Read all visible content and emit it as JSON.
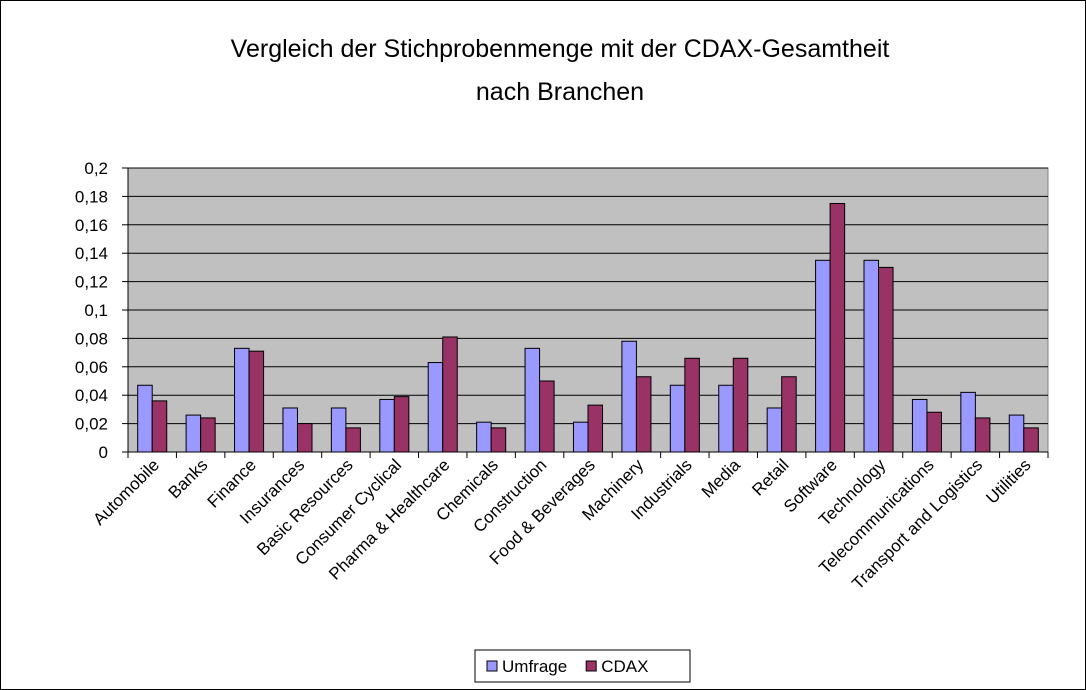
{
  "chart_data": {
    "type": "bar",
    "title_lines": [
      "Vergleich der Stichprobenmenge mit der CDAX-Gesamtheit",
      "nach Branchen"
    ],
    "categories": [
      "Automobile",
      "Banks",
      "Finance",
      "Insurances",
      "Basic Resources",
      "Consumer Cyclical",
      "Pharma & Healthcare",
      "Chemicals",
      "Construction",
      "Food & Beverages",
      "Machinery",
      "Industrials",
      "Media",
      "Retail",
      "Software",
      "Technology",
      "Telecommunications",
      "Transport and Logistics",
      "Utilities"
    ],
    "series": [
      {
        "name": "Umfrage",
        "color": "#9999ff",
        "values": [
          0.047,
          0.026,
          0.073,
          0.031,
          0.031,
          0.037,
          0.063,
          0.021,
          0.073,
          0.021,
          0.078,
          0.047,
          0.047,
          0.031,
          0.135,
          0.135,
          0.037,
          0.042,
          0.026
        ]
      },
      {
        "name": "CDAX",
        "color": "#993366",
        "values": [
          0.036,
          0.024,
          0.071,
          0.02,
          0.017,
          0.039,
          0.081,
          0.017,
          0.05,
          0.033,
          0.053,
          0.066,
          0.066,
          0.053,
          0.175,
          0.13,
          0.028,
          0.024,
          0.017
        ]
      }
    ],
    "ylim": [
      0,
      0.2
    ],
    "yticks": [
      0,
      {
        "value": 0.02,
        "label": "0,02"
      },
      {
        "value": 0.04,
        "label": "0,04"
      },
      {
        "value": 0.06,
        "label": "0,06"
      },
      {
        "value": 0.08,
        "label": "0,08"
      },
      {
        "value": 0.1,
        "label": "0,1"
      },
      {
        "value": 0.12,
        "label": "0,12"
      },
      {
        "value": 0.14,
        "label": "0,14"
      },
      {
        "value": 0.16,
        "label": "0,16"
      },
      {
        "value": 0.18,
        "label": "0,18"
      },
      {
        "value": 0.2,
        "label": "0,2"
      }
    ],
    "grid": true,
    "plot_background": "#c0c0c0",
    "legend": "bottom"
  }
}
